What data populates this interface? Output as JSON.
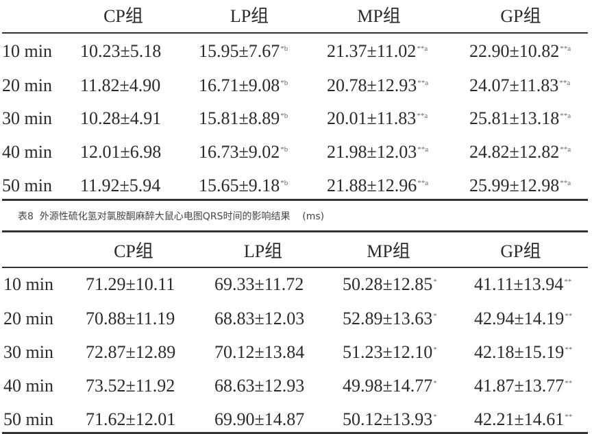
{
  "caption": "表8  外源性硫化氢对氯胺酮麻醉大鼠心电图QRS时间的影响结果    (ms)",
  "tables": [
    {
      "headers": [
        "CP组",
        "LP组",
        "MP组",
        "GP组"
      ],
      "rows": [
        {
          "label": "10 min",
          "cells": [
            {
              "v": "10.23±5.18",
              "s": ""
            },
            {
              "v": "15.95±7.67",
              "s": "*b"
            },
            {
              "v": "21.37±11.02",
              "s": "**a"
            },
            {
              "v": "22.90±10.82",
              "s": "**a"
            }
          ]
        },
        {
          "label": "20 min",
          "cells": [
            {
              "v": "11.82±4.90",
              "s": ""
            },
            {
              "v": "16.71±9.08",
              "s": "*b"
            },
            {
              "v": "20.78±12.93",
              "s": "**a"
            },
            {
              "v": "24.07±11.83",
              "s": "**a"
            }
          ]
        },
        {
          "label": "30 min",
          "cells": [
            {
              "v": "10.28±4.91",
              "s": ""
            },
            {
              "v": "15.81±8.89",
              "s": "*b"
            },
            {
              "v": "20.01±11.83",
              "s": "**a"
            },
            {
              "v": "25.81±13.18",
              "s": "**a"
            }
          ]
        },
        {
          "label": "40 min",
          "cells": [
            {
              "v": "12.01±6.98",
              "s": ""
            },
            {
              "v": "16.73±9.02",
              "s": "*b"
            },
            {
              "v": "21.98±12.03",
              "s": "**a"
            },
            {
              "v": "24.82±12.82",
              "s": "**a"
            }
          ]
        },
        {
          "label": "50 min",
          "cells": [
            {
              "v": "11.92±5.94",
              "s": ""
            },
            {
              "v": "15.65±9.18",
              "s": "*b"
            },
            {
              "v": "21.88±12.96",
              "s": "**a"
            },
            {
              "v": "25.99±12.98",
              "s": "**a"
            }
          ]
        }
      ]
    },
    {
      "headers": [
        "CP组",
        "LP组",
        "MP组",
        "GP组"
      ],
      "rows": [
        {
          "label": "10 min",
          "cells": [
            {
              "v": "71.29±10.11",
              "s": ""
            },
            {
              "v": "69.33±11.72",
              "s": ""
            },
            {
              "v": "50.28±12.85",
              "s": "*"
            },
            {
              "v": "41.11±13.94",
              "s": "**"
            }
          ]
        },
        {
          "label": "20 min",
          "cells": [
            {
              "v": "70.88±11.19",
              "s": ""
            },
            {
              "v": "68.83±12.03",
              "s": ""
            },
            {
              "v": "52.89±13.63",
              "s": "*"
            },
            {
              "v": "42.94±14.19",
              "s": "**"
            }
          ]
        },
        {
          "label": "30 min",
          "cells": [
            {
              "v": "72.87±12.89",
              "s": ""
            },
            {
              "v": "70.12±13.84",
              "s": ""
            },
            {
              "v": "51.23±12.10",
              "s": "*"
            },
            {
              "v": "42.18±15.19",
              "s": "**"
            }
          ]
        },
        {
          "label": "40 min",
          "cells": [
            {
              "v": "73.52±11.92",
              "s": ""
            },
            {
              "v": "68.63±12.93",
              "s": ""
            },
            {
              "v": "49.98±14.77",
              "s": "*"
            },
            {
              "v": "41.87±13.77",
              "s": "**"
            }
          ]
        },
        {
          "label": "50 min",
          "cells": [
            {
              "v": "71.62±12.01",
              "s": ""
            },
            {
              "v": "69.90±14.87",
              "s": ""
            },
            {
              "v": "50.12±13.93",
              "s": "*"
            },
            {
              "v": "42.21±14.61",
              "s": "**"
            }
          ]
        }
      ]
    }
  ]
}
